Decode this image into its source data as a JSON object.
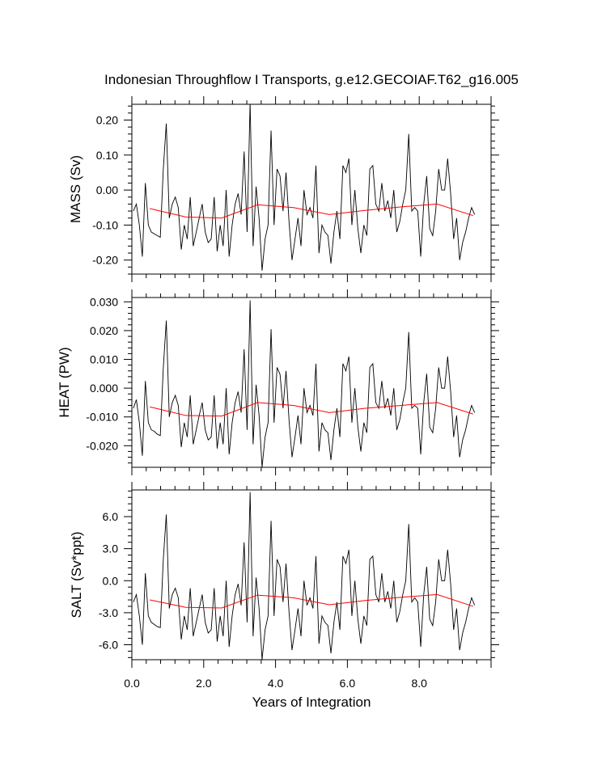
{
  "chart_data": {
    "type": "line",
    "title": "Indonesian Throughflow I Transports, g.e12.GECOIAF.T62_g16.005",
    "xlabel": "Years of Integration",
    "xlim": [
      0,
      10
    ],
    "x_ticks": [
      0,
      2,
      4,
      6,
      8
    ],
    "x_tick_labels": [
      "0.0",
      "2.0",
      "4.0",
      "6.0",
      "8.0"
    ],
    "colors": {
      "monthly": "#000000",
      "annual_mean": "#ff0000",
      "frame": "#000000"
    },
    "panels": [
      {
        "name": "mass",
        "ylabel": "MASS (Sv)",
        "ylim": [
          -0.24,
          0.245
        ],
        "y_ticks": [
          0.2,
          0.1,
          0.0,
          -0.1,
          -0.2
        ],
        "y_tick_labels": [
          "0.20",
          "0.10",
          "0.00",
          "-0.10",
          "-0.20"
        ],
        "monthly": [
          -0.06,
          -0.04,
          -0.1,
          -0.19,
          0.02,
          -0.1,
          -0.12,
          -0.125,
          -0.13,
          -0.135,
          0.06,
          0.19,
          -0.08,
          -0.04,
          -0.02,
          -0.05,
          -0.17,
          -0.1,
          -0.14,
          -0.02,
          -0.16,
          -0.12,
          -0.08,
          -0.04,
          -0.12,
          -0.15,
          -0.14,
          -0.02,
          -0.175,
          -0.1,
          -0.16,
          0.0,
          -0.19,
          -0.1,
          -0.04,
          -0.01,
          -0.07,
          0.11,
          -0.12,
          0.25,
          -0.16,
          0.01,
          -0.08,
          -0.23,
          -0.14,
          -0.1,
          0.17,
          -0.1,
          0.06,
          0.04,
          -0.06,
          0.05,
          -0.09,
          -0.2,
          -0.14,
          -0.08,
          -0.16,
          0.0,
          -0.07,
          -0.05,
          -0.08,
          0.07,
          -0.18,
          -0.1,
          -0.12,
          -0.13,
          -0.21,
          -0.12,
          -0.06,
          -0.14,
          0.07,
          0.05,
          0.09,
          -0.1,
          0.0,
          -0.11,
          -0.18,
          -0.1,
          -0.13,
          0.06,
          0.07,
          -0.04,
          -0.06,
          0.02,
          -0.06,
          -0.03,
          -0.08,
          0.0,
          -0.12,
          -0.09,
          -0.04,
          0.0,
          0.16,
          -0.06,
          -0.05,
          -0.06,
          -0.19,
          -0.04,
          0.04,
          -0.11,
          -0.13,
          -0.06,
          0.06,
          0.0,
          0.0,
          0.09,
          -0.01,
          -0.14,
          -0.08,
          -0.2,
          -0.15,
          -0.12,
          -0.08,
          -0.05,
          -0.07
        ],
        "annual_mean": {
          "x": [
            0.5,
            1.5,
            2.5,
            3.5,
            4.5,
            5.5,
            6.5,
            7.5,
            8.5,
            9.5
          ],
          "y": [
            -0.053,
            -0.077,
            -0.08,
            -0.042,
            -0.05,
            -0.07,
            -0.058,
            -0.048,
            -0.04,
            -0.073
          ]
        }
      },
      {
        "name": "heat",
        "ylabel": "HEAT (PW)",
        "ylim": [
          -0.0275,
          0.0315
        ],
        "y_ticks": [
          0.03,
          0.02,
          0.01,
          0.0,
          -0.01,
          -0.02
        ],
        "y_tick_labels": [
          "0.030",
          "0.020",
          "0.010",
          "0.000",
          "-0.010",
          "-0.020"
        ],
        "monthly": [
          -0.007,
          -0.004,
          -0.012,
          -0.0235,
          0.0025,
          -0.012,
          -0.0145,
          -0.015,
          -0.016,
          -0.0165,
          0.007,
          0.0235,
          -0.01,
          -0.005,
          -0.0025,
          -0.006,
          -0.0205,
          -0.012,
          -0.017,
          -0.0025,
          -0.0195,
          -0.0145,
          -0.0095,
          -0.005,
          -0.0145,
          -0.018,
          -0.017,
          -0.0025,
          -0.021,
          -0.012,
          -0.0195,
          0.0,
          -0.023,
          -0.012,
          -0.005,
          -0.0012,
          -0.0085,
          0.0135,
          -0.0145,
          0.0305,
          -0.0195,
          0.0012,
          -0.0095,
          -0.0275,
          -0.017,
          -0.012,
          0.0205,
          -0.012,
          0.0072,
          0.0048,
          -0.007,
          0.006,
          -0.011,
          -0.024,
          -0.017,
          -0.0095,
          -0.0195,
          0.0,
          -0.0085,
          -0.006,
          -0.0095,
          0.0085,
          -0.022,
          -0.012,
          -0.0145,
          -0.0155,
          -0.025,
          -0.0145,
          -0.007,
          -0.017,
          0.0085,
          0.006,
          0.011,
          -0.012,
          0.0,
          -0.0135,
          -0.022,
          -0.012,
          -0.0155,
          0.0072,
          0.0085,
          -0.005,
          -0.007,
          0.0025,
          -0.007,
          -0.0035,
          -0.0095,
          0.0,
          -0.0145,
          -0.011,
          -0.005,
          0.0,
          0.0195,
          -0.007,
          -0.006,
          -0.007,
          -0.023,
          -0.005,
          0.005,
          -0.0135,
          -0.0155,
          -0.007,
          0.0072,
          0.0,
          0.0,
          0.011,
          -0.0012,
          -0.017,
          -0.0095,
          -0.024,
          -0.018,
          -0.0145,
          -0.0095,
          -0.006,
          -0.0085
        ],
        "annual_mean": {
          "x": [
            0.5,
            1.5,
            2.5,
            3.5,
            4.5,
            5.5,
            6.5,
            7.5,
            8.5,
            9.5
          ],
          "y": [
            -0.0065,
            -0.0095,
            -0.0097,
            -0.005,
            -0.006,
            -0.0085,
            -0.007,
            -0.006,
            -0.005,
            -0.009
          ]
        }
      },
      {
        "name": "salt",
        "ylabel": "SALT (Sv*ppt)",
        "ylim": [
          -7.4,
          8.5
        ],
        "y_ticks": [
          6.0,
          3.0,
          0.0,
          -3.0,
          -6.0
        ],
        "y_tick_labels": [
          "6.0",
          "3.0",
          "0.0",
          "-3.0",
          "-6.0"
        ],
        "monthly": [
          -2.0,
          -1.3,
          -3.3,
          -6.0,
          0.7,
          -3.3,
          -3.9,
          -4.1,
          -4.3,
          -4.4,
          2.0,
          6.2,
          -2.6,
          -1.3,
          -0.7,
          -1.6,
          -5.5,
          -3.3,
          -4.6,
          -0.7,
          -5.2,
          -3.9,
          -2.6,
          -1.3,
          -3.9,
          -4.9,
          -4.6,
          -0.7,
          -5.7,
          -3.3,
          -5.2,
          0.0,
          -6.2,
          -3.3,
          -1.3,
          -0.3,
          -2.3,
          3.6,
          -3.9,
          8.3,
          -5.2,
          0.3,
          -2.6,
          -7.4,
          -4.6,
          -3.3,
          5.6,
          -3.3,
          2.0,
          1.3,
          -2.0,
          1.6,
          -2.9,
          -6.5,
          -4.6,
          -2.6,
          -5.2,
          0.0,
          -2.3,
          -1.6,
          -2.6,
          2.3,
          -5.9,
          -3.3,
          -3.9,
          -4.2,
          -6.8,
          -3.9,
          -2.0,
          -4.6,
          2.3,
          1.6,
          2.9,
          -3.3,
          0.0,
          -3.6,
          -5.9,
          -3.3,
          -4.2,
          2.0,
          2.3,
          -1.3,
          -2.0,
          0.7,
          -2.0,
          -1.0,
          -2.6,
          0.0,
          -3.9,
          -2.9,
          -1.3,
          0.0,
          5.3,
          -2.0,
          -1.6,
          -2.0,
          -6.2,
          -1.3,
          1.3,
          -3.6,
          -4.2,
          -2.0,
          2.0,
          0.0,
          0.0,
          2.9,
          -0.3,
          -4.6,
          -2.6,
          -6.5,
          -4.9,
          -3.9,
          -2.6,
          -1.6,
          -2.3
        ],
        "annual_mean": {
          "x": [
            0.5,
            1.5,
            2.5,
            3.5,
            4.5,
            5.5,
            6.5,
            7.5,
            8.5,
            9.5
          ],
          "y": [
            -1.8,
            -2.5,
            -2.55,
            -1.35,
            -1.6,
            -2.25,
            -1.85,
            -1.55,
            -1.3,
            -2.4
          ]
        }
      }
    ]
  }
}
